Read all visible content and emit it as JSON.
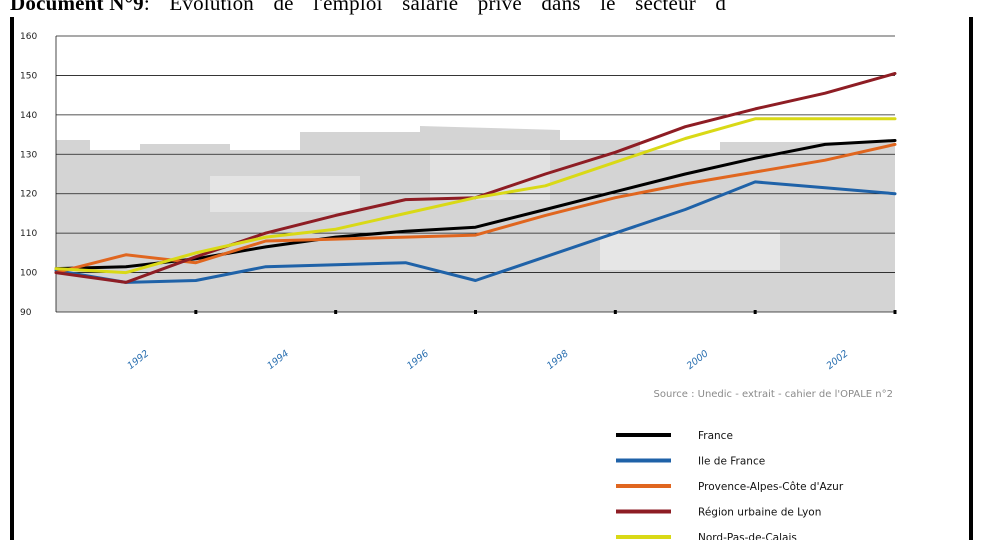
{
  "heading": {
    "bold": "Document N°9",
    "rest": ": Evolution de l'emploi salarié privé dans le secteur d"
  },
  "source": "Source : Unedic - extrait - cahier de l'OPALE n°2",
  "chart_data": {
    "type": "line",
    "title": "",
    "xlabel": "",
    "ylabel": "",
    "x": [
      1991,
      1992,
      1993,
      1994,
      1995,
      1996,
      1997,
      1998,
      1999,
      2000,
      2001,
      2002,
      2003
    ],
    "xlim": [
      1991,
      2003
    ],
    "x_ticks": [
      1992,
      1994,
      1996,
      1998,
      2000,
      2002
    ],
    "ylim": [
      90,
      160
    ],
    "y_ticks": [
      90,
      100,
      110,
      120,
      130,
      140,
      150,
      160
    ],
    "grid": true,
    "legend_position": "bottom-right",
    "series": [
      {
        "name": "France",
        "color": "#000000",
        "values": [
          101,
          101.5,
          103.5,
          106.5,
          109,
          110.5,
          111.5,
          116,
          120.5,
          125,
          129,
          132.5,
          133.5
        ]
      },
      {
        "name": "Ile de France",
        "color": "#1f62a8",
        "values": [
          100.5,
          97.5,
          98,
          101.5,
          102,
          102.5,
          98,
          104,
          110,
          116,
          123,
          121.5,
          120
        ]
      },
      {
        "name": "Provence-Alpes-Côte d'Azur",
        "color": "#e0661f",
        "values": [
          100,
          104.5,
          102.5,
          108,
          108.5,
          109,
          109.5,
          114.5,
          119,
          122.5,
          125.5,
          128.5,
          132.5
        ]
      },
      {
        "name": "Région urbaine de Lyon",
        "color": "#8e1d24",
        "values": [
          100,
          97.5,
          104,
          110,
          114.5,
          118.5,
          119,
          125,
          130.5,
          137,
          141.5,
          145.5,
          150.5
        ]
      },
      {
        "name": "Nord-Pas-de-Calais",
        "color": "#d9d916",
        "values": [
          101,
          100,
          105,
          109,
          111,
          115,
          119,
          122,
          128,
          134,
          139,
          139,
          139
        ]
      }
    ]
  }
}
